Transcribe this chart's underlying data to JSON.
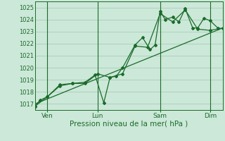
{
  "background_color": "#cce8d8",
  "grid_color": "#aaccbb",
  "line_color": "#1a6b2a",
  "ylabel": "Pression niveau de la mer( hPa )",
  "ylim": [
    1016.5,
    1025.5
  ],
  "yticks": [
    1017,
    1018,
    1019,
    1020,
    1021,
    1022,
    1023,
    1024,
    1025
  ],
  "xlim": [
    0,
    7.5
  ],
  "day_labels": [
    "Ven",
    "Lun",
    "Sam",
    "Dim"
  ],
  "day_positions": [
    0.5,
    2.5,
    5.0,
    7.0
  ],
  "vline_positions": [
    0.5,
    2.5,
    5.0,
    7.0
  ],
  "series1_x": [
    0.0,
    0.2,
    0.5,
    1.0,
    1.5,
    2.0,
    2.4,
    2.75,
    3.0,
    3.25,
    3.5,
    4.0,
    4.3,
    4.6,
    4.8,
    5.0,
    5.2,
    5.5,
    5.75,
    6.0,
    6.3,
    6.5,
    6.75,
    7.0,
    7.3
  ],
  "series1_y": [
    1016.8,
    1017.3,
    1017.6,
    1018.6,
    1018.7,
    1018.8,
    1019.4,
    1017.1,
    1019.2,
    1019.3,
    1020.0,
    1021.9,
    1022.5,
    1021.5,
    1021.9,
    1024.7,
    1024.0,
    1024.2,
    1023.8,
    1024.9,
    1023.3,
    1023.3,
    1024.1,
    1023.9,
    1023.3
  ],
  "series2_x": [
    0.0,
    0.5,
    1.0,
    1.5,
    2.0,
    2.5,
    3.0,
    3.5,
    4.0,
    4.5,
    5.0,
    5.5,
    6.0,
    6.5,
    7.0,
    7.5
  ],
  "series2_y": [
    1016.8,
    1017.6,
    1018.5,
    1018.7,
    1018.7,
    1019.5,
    1019.2,
    1019.5,
    1021.8,
    1021.7,
    1024.5,
    1023.8,
    1024.8,
    1023.2,
    1023.1,
    1023.3
  ],
  "trend_x": [
    0.0,
    7.5
  ],
  "trend_y": [
    1017.0,
    1023.3
  ],
  "ytick_fontsize": 6.0,
  "xtick_fontsize": 6.5,
  "xlabel_fontsize": 7.5
}
